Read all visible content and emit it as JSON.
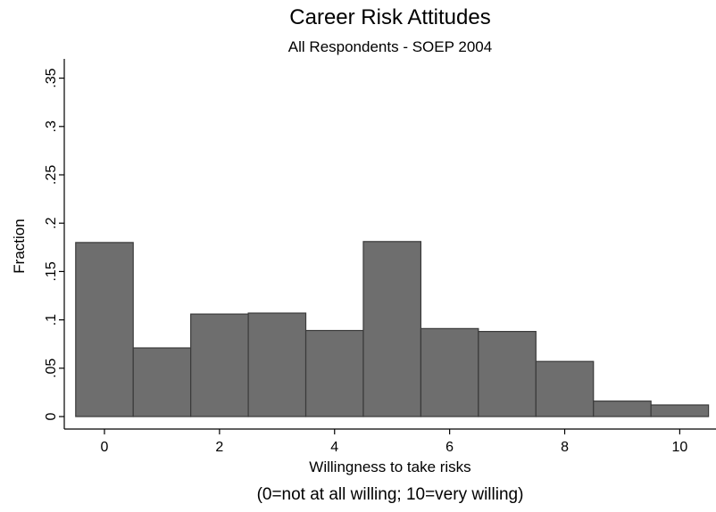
{
  "chart_data": {
    "type": "bar",
    "title": "Career Risk Attitudes",
    "subtitle": "All Respondents - SOEP 2004",
    "xlabel": "Willingness to take risks",
    "note": "(0=not at all willing; 10=very willing)",
    "ylabel": "Fraction",
    "categories": [
      0,
      1,
      2,
      3,
      4,
      5,
      6,
      7,
      8,
      9,
      10
    ],
    "values": [
      0.18,
      0.071,
      0.106,
      0.107,
      0.089,
      0.181,
      0.091,
      0.088,
      0.057,
      0.016,
      0.012
    ],
    "xlim": [
      -0.75,
      10.5
    ],
    "ylim": [
      0,
      0.36
    ],
    "x_ticks": [
      {
        "value": 0,
        "label": "0"
      },
      {
        "value": 2,
        "label": "2"
      },
      {
        "value": 4,
        "label": "4"
      },
      {
        "value": 6,
        "label": "6"
      },
      {
        "value": 8,
        "label": "8"
      },
      {
        "value": 10,
        "label": "10"
      }
    ],
    "y_ticks": [
      {
        "value": 0,
        "label": "0"
      },
      {
        "value": 0.05,
        "label": ".05"
      },
      {
        "value": 0.1,
        "label": ".1"
      },
      {
        "value": 0.15,
        "label": ".15"
      },
      {
        "value": 0.2,
        "label": ".2"
      },
      {
        "value": 0.25,
        "label": ".25"
      },
      {
        "value": 0.3,
        "label": ".3"
      },
      {
        "value": 0.35,
        "label": ".35"
      }
    ],
    "grid": false,
    "colors": {
      "bar_fill": "#6e6e6e",
      "bar_stroke": "#3a3a3a",
      "axis": "#000000"
    }
  }
}
